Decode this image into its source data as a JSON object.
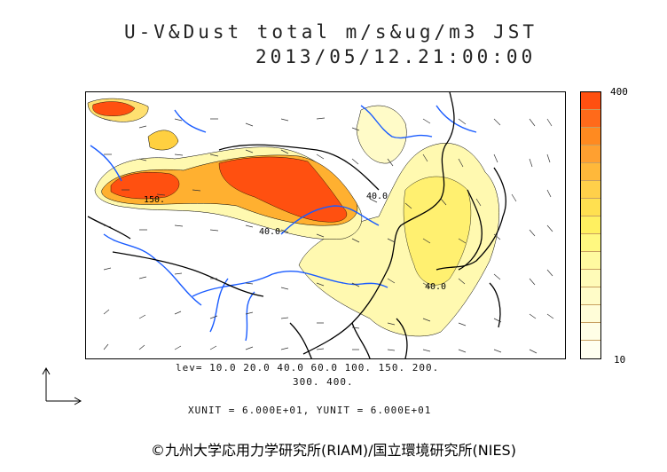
{
  "title": {
    "line1": "U-V&Dust total m/s&ug/m3 JST",
    "line2": "2013/05/12.21:00:00"
  },
  "colorbar": {
    "max_label": "400",
    "min_label": "10",
    "colors": [
      "#ff5010",
      "#ff6a1a",
      "#ff8a20",
      "#ffa030",
      "#ffb83a",
      "#ffd04a",
      "#ffe050",
      "#fff060",
      "#fff880",
      "#fffaa0",
      "#fffbb8",
      "#fffcc8",
      "#fffdd8",
      "#fffee6",
      "#fffff0"
    ]
  },
  "legend": {
    "levels_line1": "lev= 10.0 20.0 40.0 60.0 100. 150. 200.",
    "levels_line2": "300. 400.",
    "units": "XUNIT = 6.000E+01, YUNIT = 6.000E+01"
  },
  "contour_labels": {
    "label_150": "150.",
    "label_40a": "40.0",
    "label_40b": "40.0",
    "label_40c": "40.0"
  },
  "credit": "©九州大学応用力学研究所(RIAM)/国立環境研究所(NIES)",
  "colors": {
    "dust_high": "#ff5010",
    "dust_mid": "#ffb030",
    "dust_low": "#fff8a0",
    "river": "#1a5cff",
    "coast": "#000000"
  }
}
